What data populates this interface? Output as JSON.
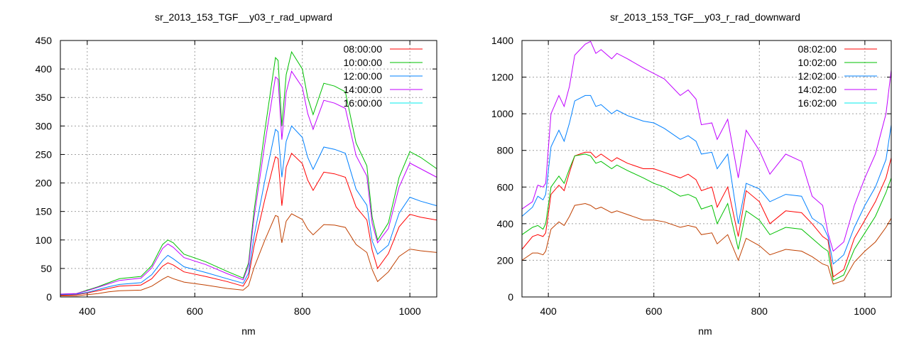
{
  "chart_data": [
    {
      "type": "line",
      "title": "sr_2013_153_TGF__y03_r_rad_upward",
      "xlabel": "nm",
      "ylabel": "",
      "xlim": [
        350,
        1050
      ],
      "ylim": [
        0,
        450
      ],
      "xticks": [
        400,
        600,
        800,
        1000
      ],
      "yticks": [
        0,
        50,
        100,
        150,
        200,
        250,
        300,
        350,
        400,
        450
      ],
      "grid": true,
      "legend_position": "top-right",
      "x": [
        350,
        380,
        400,
        420,
        440,
        460,
        500,
        520,
        540,
        550,
        560,
        580,
        620,
        660,
        690,
        700,
        710,
        730,
        750,
        755,
        762,
        770,
        780,
        800,
        810,
        820,
        840,
        860,
        880,
        900,
        920,
        930,
        940,
        960,
        980,
        1000,
        1020,
        1050
      ],
      "series": [
        {
          "name": "08:00:00",
          "color": "#ff0000",
          "line_color": "#ff0000",
          "values": [
            3,
            4,
            7,
            11,
            15,
            19,
            21,
            32,
            54,
            60,
            56,
            44,
            36,
            27,
            19,
            35,
            88,
            170,
            246,
            243,
            160,
            228,
            252,
            234,
            205,
            187,
            219,
            216,
            210,
            158,
            135,
            82,
            50,
            76,
            123,
            145,
            140,
            135
          ]
        },
        {
          "name": "10:00:00",
          "color": "#00c000",
          "line_color": "#00c000",
          "values": [
            5,
            6,
            12,
            18,
            25,
            32,
            36,
            55,
            92,
            100,
            95,
            75,
            62,
            45,
            33,
            60,
            150,
            290,
            420,
            415,
            300,
            390,
            430,
            400,
            350,
            320,
            375,
            370,
            360,
            270,
            230,
            140,
            100,
            130,
            210,
            255,
            245,
            225
          ]
        },
        {
          "name": "12:00:00",
          "color": "#0080ff",
          "line_color": "#0080ff",
          "values": [
            4,
            5,
            8,
            13,
            18,
            22,
            25,
            39,
            64,
            73,
            67,
            53,
            43,
            32,
            24,
            42,
            105,
            203,
            294,
            290,
            210,
            273,
            300,
            280,
            245,
            224,
            263,
            259,
            252,
            189,
            161,
            98,
            75,
            91,
            147,
            175,
            168,
            160
          ]
        },
        {
          "name": "14:00:00",
          "color": "#c000ff",
          "line_color": "#c000ff",
          "values": [
            5,
            6,
            11,
            17,
            23,
            29,
            33,
            51,
            85,
            93,
            87,
            69,
            57,
            41,
            30,
            55,
            138,
            267,
            386,
            382,
            276,
            359,
            396,
            368,
            322,
            294,
            345,
            340,
            331,
            248,
            212,
            129,
            95,
            120,
            193,
            235,
            225,
            210
          ]
        },
        {
          "name": "16:00:00",
          "color": "#00eeee",
          "line_color": "#c04000",
          "values": [
            2,
            2,
            4,
            6,
            9,
            11,
            12,
            19,
            31,
            36,
            32,
            26,
            21,
            15,
            12,
            20,
            51,
            99,
            143,
            141,
            95,
            133,
            146,
            136,
            119,
            109,
            127,
            126,
            122,
            92,
            78,
            48,
            27,
            44,
            71,
            84,
            81,
            78
          ]
        }
      ]
    },
    {
      "type": "line",
      "title": "sr_2013_153_TGF__y03_r_rad_downward",
      "xlabel": "nm",
      "ylabel": "",
      "xlim": [
        350,
        1050
      ],
      "ylim": [
        0,
        1400
      ],
      "xticks": [
        400,
        600,
        800,
        1000
      ],
      "yticks": [
        0,
        200,
        400,
        600,
        800,
        1000,
        1200,
        1400
      ],
      "grid": true,
      "legend_position": "top-right",
      "x": [
        350,
        370,
        380,
        390,
        395,
        405,
        420,
        430,
        440,
        450,
        470,
        480,
        490,
        500,
        520,
        530,
        550,
        580,
        600,
        620,
        650,
        665,
        680,
        690,
        710,
        720,
        740,
        760,
        775,
        800,
        820,
        850,
        880,
        900,
        920,
        930,
        940,
        960,
        980,
        1000,
        1020,
        1040,
        1050
      ],
      "series": [
        {
          "name": "08:02:00",
          "color": "#ff0000",
          "line_color": "#ff0000",
          "values": [
            260,
            330,
            340,
            330,
            350,
            560,
            610,
            580,
            680,
            770,
            790,
            790,
            760,
            780,
            740,
            760,
            730,
            700,
            700,
            680,
            650,
            670,
            640,
            580,
            600,
            490,
            600,
            330,
            580,
            520,
            400,
            470,
            460,
            400,
            330,
            310,
            110,
            150,
            320,
            420,
            520,
            650,
            760
          ]
        },
        {
          "name": "10:02:00",
          "color": "#00c000",
          "line_color": "#00c000",
          "values": [
            340,
            380,
            390,
            370,
            400,
            600,
            660,
            620,
            700,
            770,
            780,
            770,
            730,
            740,
            700,
            720,
            690,
            650,
            620,
            600,
            550,
            560,
            540,
            480,
            500,
            400,
            510,
            260,
            470,
            420,
            340,
            380,
            370,
            320,
            270,
            250,
            90,
            120,
            260,
            350,
            440,
            570,
            650
          ]
        },
        {
          "name": "12:02:00",
          "color": "#0080ff",
          "line_color": "#0080ff",
          "values": [
            440,
            490,
            550,
            530,
            560,
            820,
            910,
            850,
            950,
            1070,
            1100,
            1100,
            1040,
            1050,
            1000,
            1020,
            990,
            960,
            950,
            920,
            860,
            880,
            850,
            780,
            790,
            700,
            780,
            400,
            620,
            590,
            520,
            560,
            550,
            430,
            390,
            330,
            180,
            230,
            380,
            500,
            600,
            750,
            940
          ]
        },
        {
          "name": "14:02:00",
          "color": "#c000ff",
          "line_color": "#c000ff",
          "values": [
            480,
            520,
            610,
            600,
            620,
            1000,
            1100,
            1040,
            1150,
            1320,
            1380,
            1395,
            1330,
            1350,
            1300,
            1330,
            1300,
            1250,
            1220,
            1190,
            1100,
            1130,
            1080,
            940,
            950,
            860,
            970,
            650,
            910,
            800,
            670,
            780,
            740,
            550,
            500,
            350,
            250,
            300,
            500,
            650,
            780,
            1000,
            1240
          ]
        },
        {
          "name": "16:02:00",
          "color": "#00eeee",
          "line_color": "#c04000",
          "values": [
            200,
            240,
            240,
            230,
            250,
            370,
            410,
            390,
            440,
            500,
            510,
            500,
            480,
            490,
            460,
            470,
            450,
            420,
            420,
            410,
            380,
            390,
            380,
            340,
            350,
            290,
            340,
            200,
            320,
            280,
            230,
            260,
            250,
            220,
            180,
            170,
            70,
            90,
            190,
            250,
            300,
            380,
            430
          ]
        }
      ]
    }
  ]
}
